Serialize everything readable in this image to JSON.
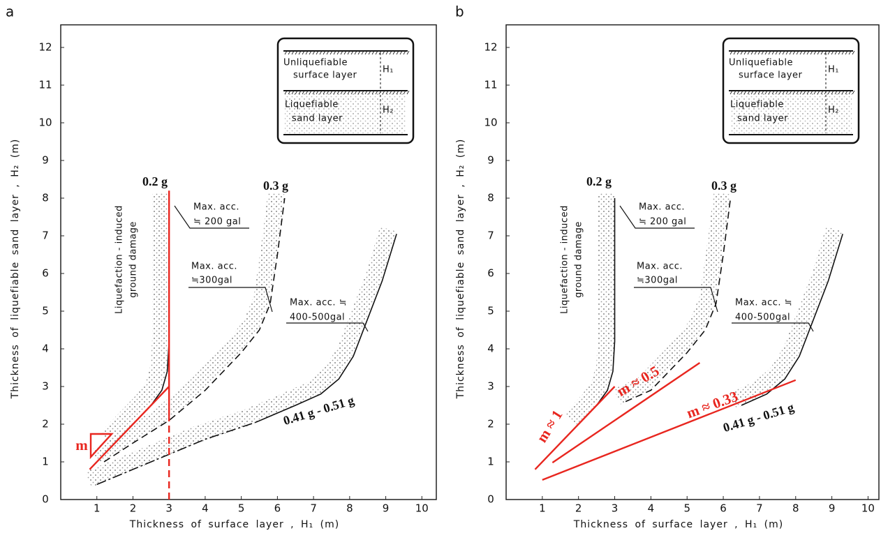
{
  "chart_data": [
    {
      "type": "line",
      "panel_label": "a",
      "xlabel": "Thickness of surface layer , H₁   (m)",
      "ylabel": "Thickness of liquefiable sand layer , H₂   (m)",
      "xlim": [
        0,
        10.4
      ],
      "ylim": [
        0,
        12.6
      ],
      "xticks": [
        0,
        1,
        2,
        3,
        4,
        5,
        6,
        7,
        8,
        9,
        10
      ],
      "yticks": [
        0,
        1,
        2,
        3,
        4,
        5,
        6,
        7,
        8,
        9,
        10,
        11,
        12
      ],
      "series": [
        {
          "name": "0.2 g",
          "color": "#111111",
          "style": "solid",
          "shading": true,
          "x": [
            1.5,
            2,
            2.5,
            2.8,
            2.95,
            3.0,
            3.0
          ],
          "values": [
            1.5,
            2.0,
            2.5,
            2.9,
            3.4,
            4.2,
            8.0
          ]
        },
        {
          "name": "0.3 g",
          "color": "#111111",
          "style": "dashed",
          "shading": true,
          "x": [
            1.2,
            2,
            3,
            4,
            5,
            5.5,
            5.8,
            6.0,
            6.2
          ],
          "values": [
            1.0,
            1.5,
            2.1,
            2.9,
            3.9,
            4.5,
            5.2,
            6.5,
            8.0
          ]
        },
        {
          "name": "0.41 g - 0.51 g",
          "color": "#111111",
          "style": "dashdot",
          "shading": true,
          "x": [
            1,
            2,
            3,
            4,
            5.4
          ],
          "values": [
            0.4,
            0.8,
            1.2,
            1.6,
            2.05
          ]
        },
        {
          "name": "m",
          "color": "#e8261f",
          "style": "solid",
          "shading": false,
          "x": [
            0.8,
            3.0
          ],
          "values": [
            0.8,
            3.0
          ]
        },
        {
          "color": "#e8261f",
          "style": "solid",
          "shading": false,
          "x": [
            3.0,
            3.0
          ],
          "values": [
            2.2,
            8.2
          ]
        },
        {
          "color": "#e8261f",
          "style": "dashed",
          "shading": false,
          "x": [
            3.0,
            3.0
          ],
          "values": [
            0,
            2.2
          ]
        },
        {
          "color": "#111111",
          "style": "solid",
          "shading": true,
          "x": [
            5.4,
            6.5,
            7.2,
            7.7,
            8.1,
            8.5,
            8.9,
            9.3
          ],
          "values": [
            2.05,
            2.5,
            2.8,
            3.2,
            3.8,
            4.8,
            5.8,
            7.05
          ]
        }
      ],
      "annotations": [
        [
          "Max. acc.",
          "≒ 200 gal"
        ],
        [
          "Max. acc.",
          "≒300gal"
        ],
        [
          "Max. acc. ≒",
          "400-500gal"
        ]
      ],
      "side_label": [
        "Liquefaction - induced",
        "ground damage"
      ],
      "inset": [
        "Unliquefiable",
        "surface layer",
        "H₁",
        "Liquefiable",
        "sand layer",
        "H₂"
      ]
    },
    {
      "type": "line",
      "panel_label": "b",
      "xlabel": "Thickness of surface layer , H₁   (m)",
      "ylabel": "Thickness of liquefiable sand layer , H₂   (m)",
      "xlim": [
        0,
        10.3
      ],
      "ylim": [
        0,
        12.6
      ],
      "xticks": [
        0,
        1,
        2,
        3,
        4,
        5,
        6,
        7,
        8,
        9,
        10
      ],
      "yticks": [
        0,
        1,
        2,
        3,
        4,
        5,
        6,
        7,
        8,
        9,
        10,
        11,
        12
      ],
      "series": [
        {
          "name": "0.2 g",
          "color": "#111111",
          "style": "solid",
          "shading": true,
          "x": [
            2,
            2.5,
            2.8,
            2.95,
            3.0,
            3.0
          ],
          "values": [
            2.0,
            2.5,
            2.9,
            3.4,
            4.2,
            8.0
          ]
        },
        {
          "name": "0.3 g",
          "color": "#111111",
          "style": "dashed",
          "shading": true,
          "x": [
            3.3,
            4,
            5,
            5.5,
            5.8,
            6.0,
            6.2
          ],
          "values": [
            2.6,
            2.9,
            3.9,
            4.5,
            5.2,
            6.5,
            8.0
          ]
        },
        {
          "name": "0.41 g - 0.51 g",
          "color": "#111111",
          "style": "solid",
          "shading": true,
          "x": [
            6.5,
            7.2,
            7.7,
            8.1,
            8.5,
            8.9,
            9.3
          ],
          "values": [
            2.5,
            2.8,
            3.2,
            3.8,
            4.8,
            5.8,
            7.05
          ]
        },
        {
          "name": "m ≈ 1",
          "color": "#e8261f",
          "style": "solid",
          "shading": false,
          "x": [
            0.8,
            3.0
          ],
          "values": [
            0.8,
            3.0
          ]
        },
        {
          "name": "m ≈ 0.5",
          "color": "#e8261f",
          "style": "solid",
          "shading": false,
          "x": [
            1.28,
            5.35
          ],
          "values": [
            0.98,
            3.63
          ]
        },
        {
          "name": "m ≈ 0.33",
          "color": "#e8261f",
          "style": "solid",
          "shading": false,
          "x": [
            1.0,
            8.0
          ],
          "values": [
            0.52,
            3.17
          ]
        }
      ],
      "annotations": [
        [
          "Max. acc.",
          "≒ 200 gal"
        ],
        [
          "Max. acc.",
          "≒300gal"
        ],
        [
          "Max. acc. ≒",
          "400-500gal"
        ]
      ],
      "side_label": [
        "Liquefaction - induced",
        "ground damage"
      ],
      "inset": [
        "Unliquefiable",
        "surface layer",
        "H₁",
        "Liquefiable",
        "sand layer",
        "H₂"
      ]
    }
  ]
}
